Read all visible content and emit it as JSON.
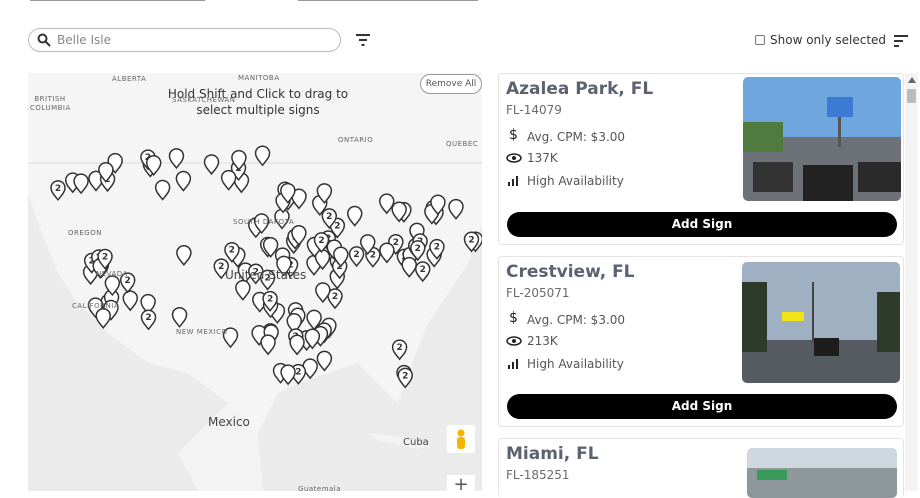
{
  "search": {
    "placeholder": "Belle Isle"
  },
  "toolbar": {
    "show_only_selected": "Show only selected"
  },
  "map": {
    "hint": "Hold Shift and Click to drag to select multiple signs",
    "remove_all": "Remove All",
    "labels": [
      "ALBERTA",
      "MANITOBA",
      "BRITISH COLUMBIA",
      "SASKATCHEWAN",
      "ONTARIO",
      "QUEBEC",
      "OREGON",
      "SOUTH DAKOTA",
      "NEVADA",
      "CALIFORNIA",
      "United States",
      "NEW MEXICO",
      "Mexico",
      "Cuba",
      "Guatemala"
    ],
    "cluster_count": "2",
    "zoom_in": "+"
  },
  "listings": [
    {
      "title": "Azalea Park, FL",
      "id": "FL-14079",
      "cpm": "Avg. CPM: $3.00",
      "impressions": "137K",
      "availability": "High Availability",
      "button": "Add Sign"
    },
    {
      "title": "Crestview, FL",
      "id": "FL-205071",
      "cpm": "Avg. CPM: $3.00",
      "impressions": "213K",
      "availability": "High Availability",
      "button": "Add Sign"
    },
    {
      "title": "Miami, FL",
      "id": "FL-185251"
    }
  ]
}
